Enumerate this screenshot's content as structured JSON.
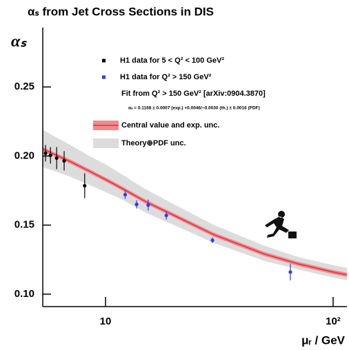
{
  "chart_data": {
    "type": "scatter",
    "title": "αₛ from Jet Cross Sections in DIS",
    "y_label": "αₛ",
    "x_label": "μᵣ / GeV",
    "log_x": true,
    "xlim": [
      5.3,
      115
    ],
    "ylim": [
      0.091,
      0.293
    ],
    "xticks": [
      10,
      {
        "value": 100,
        "label": "10²"
      }
    ],
    "yticks": [
      {
        "value": 0.1,
        "label": "0.10"
      },
      0.15,
      {
        "value": 0.2,
        "label": "0.20"
      },
      0.25
    ],
    "series": [
      {
        "name": "H1 data for 5 < Q² < 100 GeV²",
        "color": "#000000",
        "x": [
          5.45,
          5.73,
          6.1,
          6.58,
          8.1
        ],
        "values": [
          0.202,
          0.2005,
          0.1985,
          0.1965,
          0.1785
        ],
        "errors": [
          0.006,
          0.006,
          0.008,
          0.007,
          0.009
        ]
      },
      {
        "name": "H1 data for Q² > 150 GeV²",
        "color": "#2a3cf0",
        "x": [
          12.2,
          13.7,
          15.4,
          18.5,
          29.5,
          64.9
        ],
        "values": [
          0.172,
          0.165,
          0.1645,
          0.157,
          0.139,
          0.116
        ],
        "errors": [
          0.003,
          0.003,
          0.004,
          0.003,
          0.002,
          0.006
        ]
      }
    ],
    "fit_label": "Fit from Q² > 150 GeV² [arXiv:0904.3870]",
    "fit_result": "αₛ = 0.1168 ± 0.0007 (exp.) +0.0046/−0.0030 (th.) ± 0.0016 (PDF)",
    "fit": {
      "name": "Central value and exp. unc.",
      "color": "#e0303a",
      "band_color": "#f08a90",
      "x": [
        5.3,
        6,
        7,
        8.5,
        10,
        12,
        15,
        20,
        30,
        50,
        70,
        100,
        115
      ],
      "values": [
        0.205,
        0.201,
        0.196,
        0.189,
        0.183,
        0.176,
        0.167,
        0.157,
        0.143,
        0.129,
        0.122,
        0.116,
        0.114
      ],
      "lower": [
        0.2035,
        0.1995,
        0.1945,
        0.1875,
        0.1815,
        0.1745,
        0.1655,
        0.1555,
        0.1415,
        0.1275,
        0.1205,
        0.1145,
        0.1125
      ],
      "upper": [
        0.2065,
        0.2025,
        0.1975,
        0.1905,
        0.1845,
        0.1775,
        0.1685,
        0.1585,
        0.1445,
        0.1305,
        0.1235,
        0.1175,
        0.1155
      ]
    },
    "theory_band": {
      "name": "Theory⊕PDF unc.",
      "color": "#dcdcdc",
      "x": [
        5.3,
        6,
        7,
        8.5,
        10,
        12,
        15,
        20,
        30,
        50,
        70,
        100,
        115
      ],
      "lower": [
        0.192,
        0.189,
        0.185,
        0.179,
        0.174,
        0.168,
        0.159,
        0.15,
        0.137,
        0.124,
        0.118,
        0.112,
        0.11
      ],
      "upper": [
        0.219,
        0.214,
        0.208,
        0.2,
        0.194,
        0.186,
        0.176,
        0.165,
        0.15,
        0.135,
        0.127,
        0.121,
        0.119
      ]
    }
  }
}
